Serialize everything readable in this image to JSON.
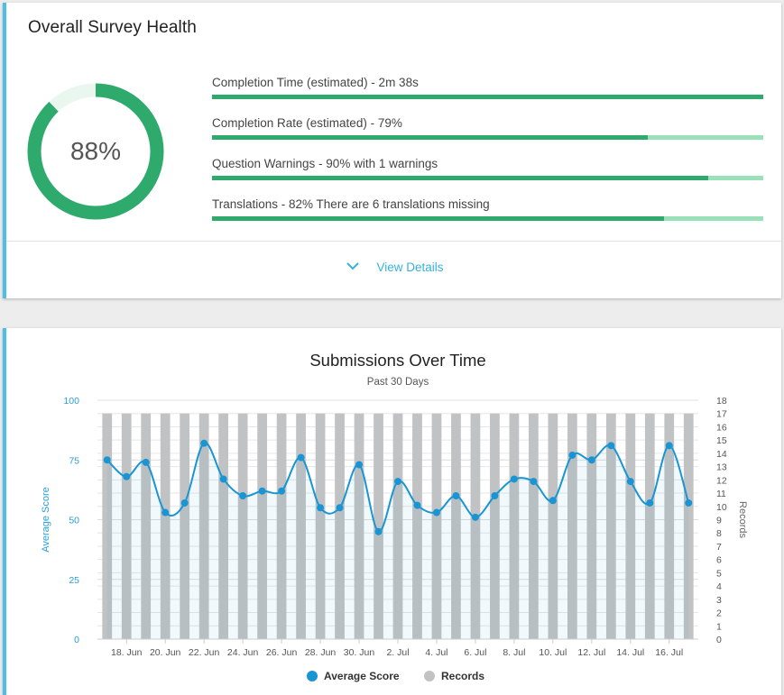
{
  "health": {
    "title": "Overall Survey Health",
    "score_percent": 88,
    "score_label": "88%",
    "accent_color": "#2eab6c",
    "track_color": "#9ae0b9",
    "metrics": [
      {
        "label": "Completion Time (estimated) - 2m 38s",
        "percent": 100
      },
      {
        "label": "Completion Rate (estimated) - 79%",
        "percent": 79
      },
      {
        "label": "Question Warnings - 90% with 1 warnings",
        "percent": 90
      },
      {
        "label": "Translations - 82% There are 6 translations missing",
        "percent": 82
      }
    ],
    "view_details_label": "View Details"
  },
  "chart_data": {
    "type": "bar",
    "title": "Submissions Over Time",
    "subtitle": "Past 30 Days",
    "x_tick_labels": [
      "18. Jun",
      "20. Jun",
      "22. Jun",
      "24. Jun",
      "26. Jun",
      "28. Jun",
      "30. Jun",
      "2. Jul",
      "4. Jul",
      "6. Jul",
      "8. Jul",
      "10. Jul",
      "12. Jul",
      "14. Jul",
      "16. Jul"
    ],
    "y_left": {
      "label": "Average Score",
      "ylim": [
        0,
        100
      ],
      "ticks": [
        0,
        25,
        50,
        75,
        100
      ]
    },
    "y_right": {
      "label": "Records",
      "ylim": [
        0,
        18
      ],
      "ticks": [
        0,
        1,
        2,
        3,
        4,
        5,
        6,
        7,
        8,
        9,
        10,
        11,
        12,
        13,
        14,
        15,
        16,
        17,
        18
      ]
    },
    "grid": true,
    "legend_position": "bottom-center",
    "series": [
      {
        "name": "Average Score",
        "type": "spline-area",
        "axis": "left",
        "color": "#1a95d4",
        "values": [
          75,
          68,
          74,
          53,
          57,
          82,
          67,
          60,
          62,
          62,
          76,
          55,
          55,
          73,
          45,
          66,
          56,
          53,
          60,
          51,
          60,
          67,
          66,
          58,
          77,
          75,
          81,
          66,
          57,
          81,
          57
        ]
      },
      {
        "name": "Records",
        "type": "bar",
        "axis": "right",
        "color": "#c1c2c3",
        "values": [
          17,
          17,
          17,
          17,
          17,
          17,
          17,
          17,
          17,
          17,
          17,
          17,
          17,
          17,
          17,
          17,
          17,
          17,
          17,
          17,
          17,
          17,
          17,
          17,
          17,
          17,
          17,
          17,
          17,
          17,
          17
        ]
      }
    ]
  }
}
